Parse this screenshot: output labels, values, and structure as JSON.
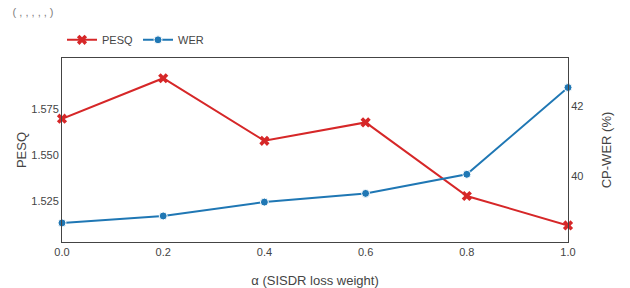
{
  "chart_data": {
    "type": "line",
    "title": "( , , , , , )",
    "xlabel": "α (SISDR loss weight)",
    "ylabel": "PESQ",
    "y2label": "CP-WER (%)",
    "x": [
      0.0,
      0.2,
      0.4,
      0.6,
      0.8,
      1.0
    ],
    "series": [
      {
        "name": "PESQ",
        "color": "#d62728",
        "marker": "x",
        "values": [
          1.57,
          1.592,
          1.558,
          1.568,
          1.528,
          1.512
        ]
      },
      {
        "name": "WER",
        "color": "#1f77b4",
        "marker": "circle",
        "axis": "y2",
        "values": [
          38.65,
          38.85,
          39.25,
          39.5,
          40.05,
          42.55
        ]
      }
    ],
    "xlim": [
      0,
      1
    ],
    "xticks": [
      {
        "value": 0,
        "label": "0.0"
      },
      0.2,
      0.4,
      0.6,
      0.8,
      {
        "value": 1,
        "label": "1.0"
      }
    ],
    "ylim": [
      1.503,
      1.603
    ],
    "yticks": [
      1.525,
      {
        "value": 1.55,
        "label": "1.550"
      },
      1.575
    ],
    "y2lim": [
      38.1,
      43.4
    ],
    "y2ticks": [
      40,
      42
    ],
    "grid": false,
    "legend": "upper left"
  }
}
